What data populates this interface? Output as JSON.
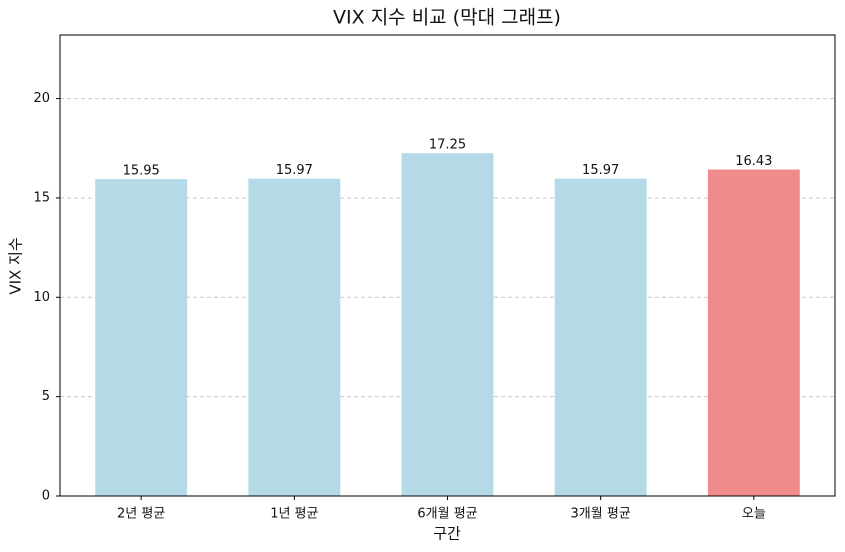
{
  "chart_data": {
    "type": "bar",
    "title": "VIX 지수 비교 (막대 그래프)",
    "x_label": "구간",
    "y_label": "VIX 지수",
    "categories": [
      "2년 평균",
      "1년 평균",
      "6개월 평균",
      "3개월 평균",
      "오늘"
    ],
    "values": [
      15.95,
      15.97,
      17.25,
      15.97,
      16.43
    ],
    "colors": [
      "#b3dae6",
      "#b3dae6",
      "#b3dae6",
      "#b3dae6",
      "#f08b8b"
    ],
    "ylim": [
      0,
      23.2
    ],
    "yticks": [
      0,
      5,
      10,
      15,
      20
    ],
    "grid": true
  }
}
